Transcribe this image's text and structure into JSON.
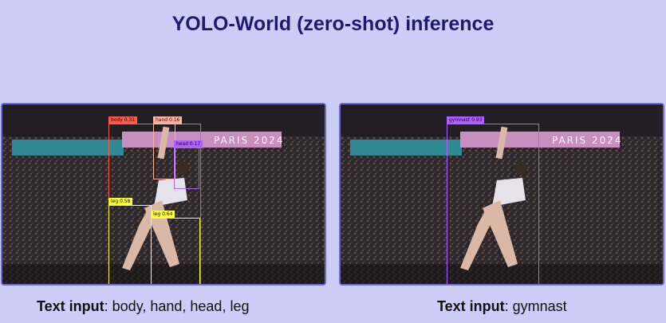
{
  "title": "YOLO-World (zero-shot) inference",
  "banner_text": "PARIS 2024",
  "colors": {
    "background": "#cccef8",
    "title": "#1e1b6e",
    "panel_border": "#6e67d8",
    "body": "#ff5a4a",
    "hand": "#ffb2a0",
    "head": "#b060ff",
    "leg": "#ffff40",
    "gymnast": "#b060ff"
  },
  "left_panel": {
    "detections": [
      {
        "label": "body",
        "score": "0.31",
        "text": "body 0.31"
      },
      {
        "label": "hand",
        "score": "0.16",
        "text": "hand 0.16"
      },
      {
        "label": "head",
        "score": "0.17",
        "text": "head 0.17"
      },
      {
        "label": "leg",
        "score": "0.58",
        "text": "leg 0.58"
      },
      {
        "label": "leg",
        "score": "0.64",
        "text": "leg 0.64"
      }
    ],
    "caption_label": "Text input",
    "caption_value": ": body, hand, head, leg"
  },
  "right_panel": {
    "detections": [
      {
        "label": "gymnast",
        "score": "0.93",
        "text": "gymnast 0.93"
      }
    ],
    "caption_label": "Text input",
    "caption_value": ": gymnast"
  }
}
